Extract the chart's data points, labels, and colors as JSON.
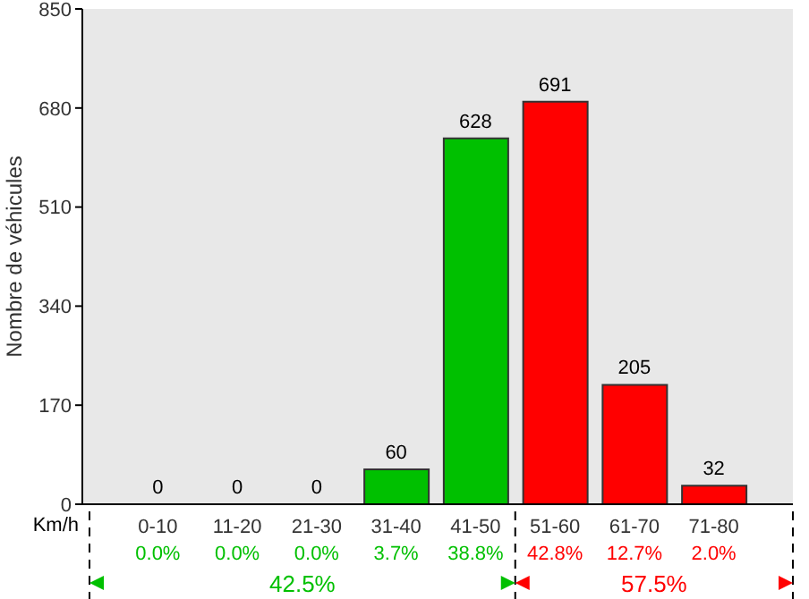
{
  "chart_data": {
    "type": "bar",
    "ylabel": "Nombre de véhicules",
    "xlabel": "Km/h",
    "categories": [
      "0-10",
      "11-20",
      "21-30",
      "31-40",
      "41-50",
      "51-60",
      "61-70",
      "71-80"
    ],
    "values": [
      0,
      0,
      0,
      60,
      628,
      691,
      205,
      32
    ],
    "colors": [
      "#00c000",
      "#00c000",
      "#00c000",
      "#00c000",
      "#00c000",
      "#ff0000",
      "#ff0000",
      "#ff0000"
    ],
    "ylim": [
      0,
      850
    ],
    "yticks": [
      0,
      170,
      340,
      510,
      680,
      850
    ],
    "data_labels": true,
    "annotations": [
      "0.0%",
      "0.0%",
      "0.0%",
      "3.7%",
      "38.8%",
      "42.8%",
      "12.7%",
      "2.0%",
      "42.5%",
      "57.5%"
    ]
  }
}
